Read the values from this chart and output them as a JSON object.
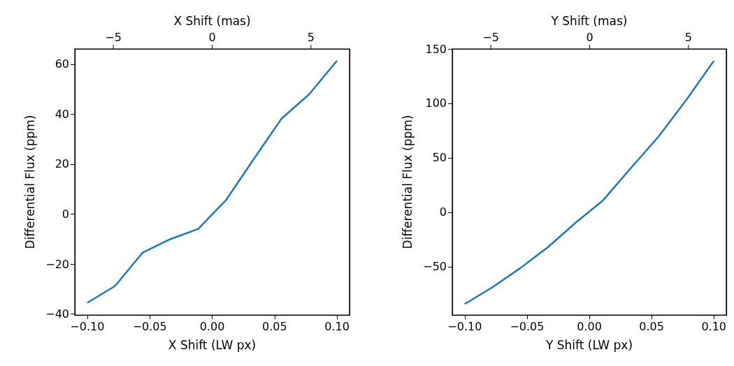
{
  "chart_data": [
    {
      "type": "line",
      "xlabel": "X Shift (LW px)",
      "x2label": "X Shift (mas)",
      "ylabel": "Differential Flux (ppm)",
      "x": [
        -0.1,
        -0.0778,
        -0.0556,
        -0.0333,
        -0.0111,
        0.0111,
        0.0333,
        0.0556,
        0.0778,
        0.1
      ],
      "series": [
        {
          "color": "#1f77b4",
          "values": [
            -35.5,
            -28.8,
            -15.4,
            -10,
            -5.9,
            5.6,
            22,
            38.2,
            48,
            61.4
          ]
        }
      ],
      "xlim": [
        -0.11,
        0.11
      ],
      "xticks": [
        {
          "value": -0.1,
          "label": "−0.10"
        },
        {
          "value": -0.05,
          "label": "−0.05"
        },
        {
          "value": 0,
          "label": "0.00"
        },
        {
          "value": 0.05,
          "label": "0.05"
        },
        {
          "value": 0.1,
          "label": "0.10"
        }
      ],
      "x2lim": [
        -6.95,
        6.95
      ],
      "x2ticks": [
        {
          "value": -5,
          "label": "−5"
        },
        {
          "value": 0,
          "label": "0"
        },
        {
          "value": 5,
          "label": "5"
        }
      ],
      "ylim": [
        -40.4,
        66.1
      ],
      "yticks": [
        {
          "value": -40,
          "label": "−40"
        },
        {
          "value": -20,
          "label": "−20"
        },
        0,
        20,
        40,
        60
      ],
      "grid": false,
      "marker": "none",
      "line_style": "solid"
    },
    {
      "type": "line",
      "xlabel": "Y Shift (LW px)",
      "x2label": "Y Shift (mas)",
      "ylabel": "Differential Flux (ppm)",
      "x": [
        -0.1,
        -0.0778,
        -0.0556,
        -0.0333,
        -0.0111,
        0.0111,
        0.0333,
        0.0556,
        0.0778,
        0.1
      ],
      "series": [
        {
          "color": "#1f77b4",
          "values": [
            -84.3,
            -68.9,
            -51.5,
            -32.2,
            -9.7,
            11,
            40.5,
            69.5,
            103,
            139
          ]
        }
      ],
      "xlim": [
        -0.11,
        0.11
      ],
      "xticks": [
        {
          "value": -0.1,
          "label": "−0.10"
        },
        {
          "value": -0.05,
          "label": "−0.05"
        },
        {
          "value": 0,
          "label": "0.00"
        },
        {
          "value": 0.05,
          "label": "0.05"
        },
        {
          "value": 0.1,
          "label": "0.10"
        }
      ],
      "x2lim": [
        -6.95,
        6.95
      ],
      "x2ticks": [
        {
          "value": -5,
          "label": "−5"
        },
        {
          "value": 0,
          "label": "0"
        },
        {
          "value": 5,
          "label": "5"
        }
      ],
      "ylim": [
        -94.4,
        150
      ],
      "yticks": [
        {
          "value": -50,
          "label": "−50"
        },
        0,
        50,
        100,
        150
      ],
      "grid": false,
      "marker": "none",
      "line_style": "solid"
    }
  ]
}
